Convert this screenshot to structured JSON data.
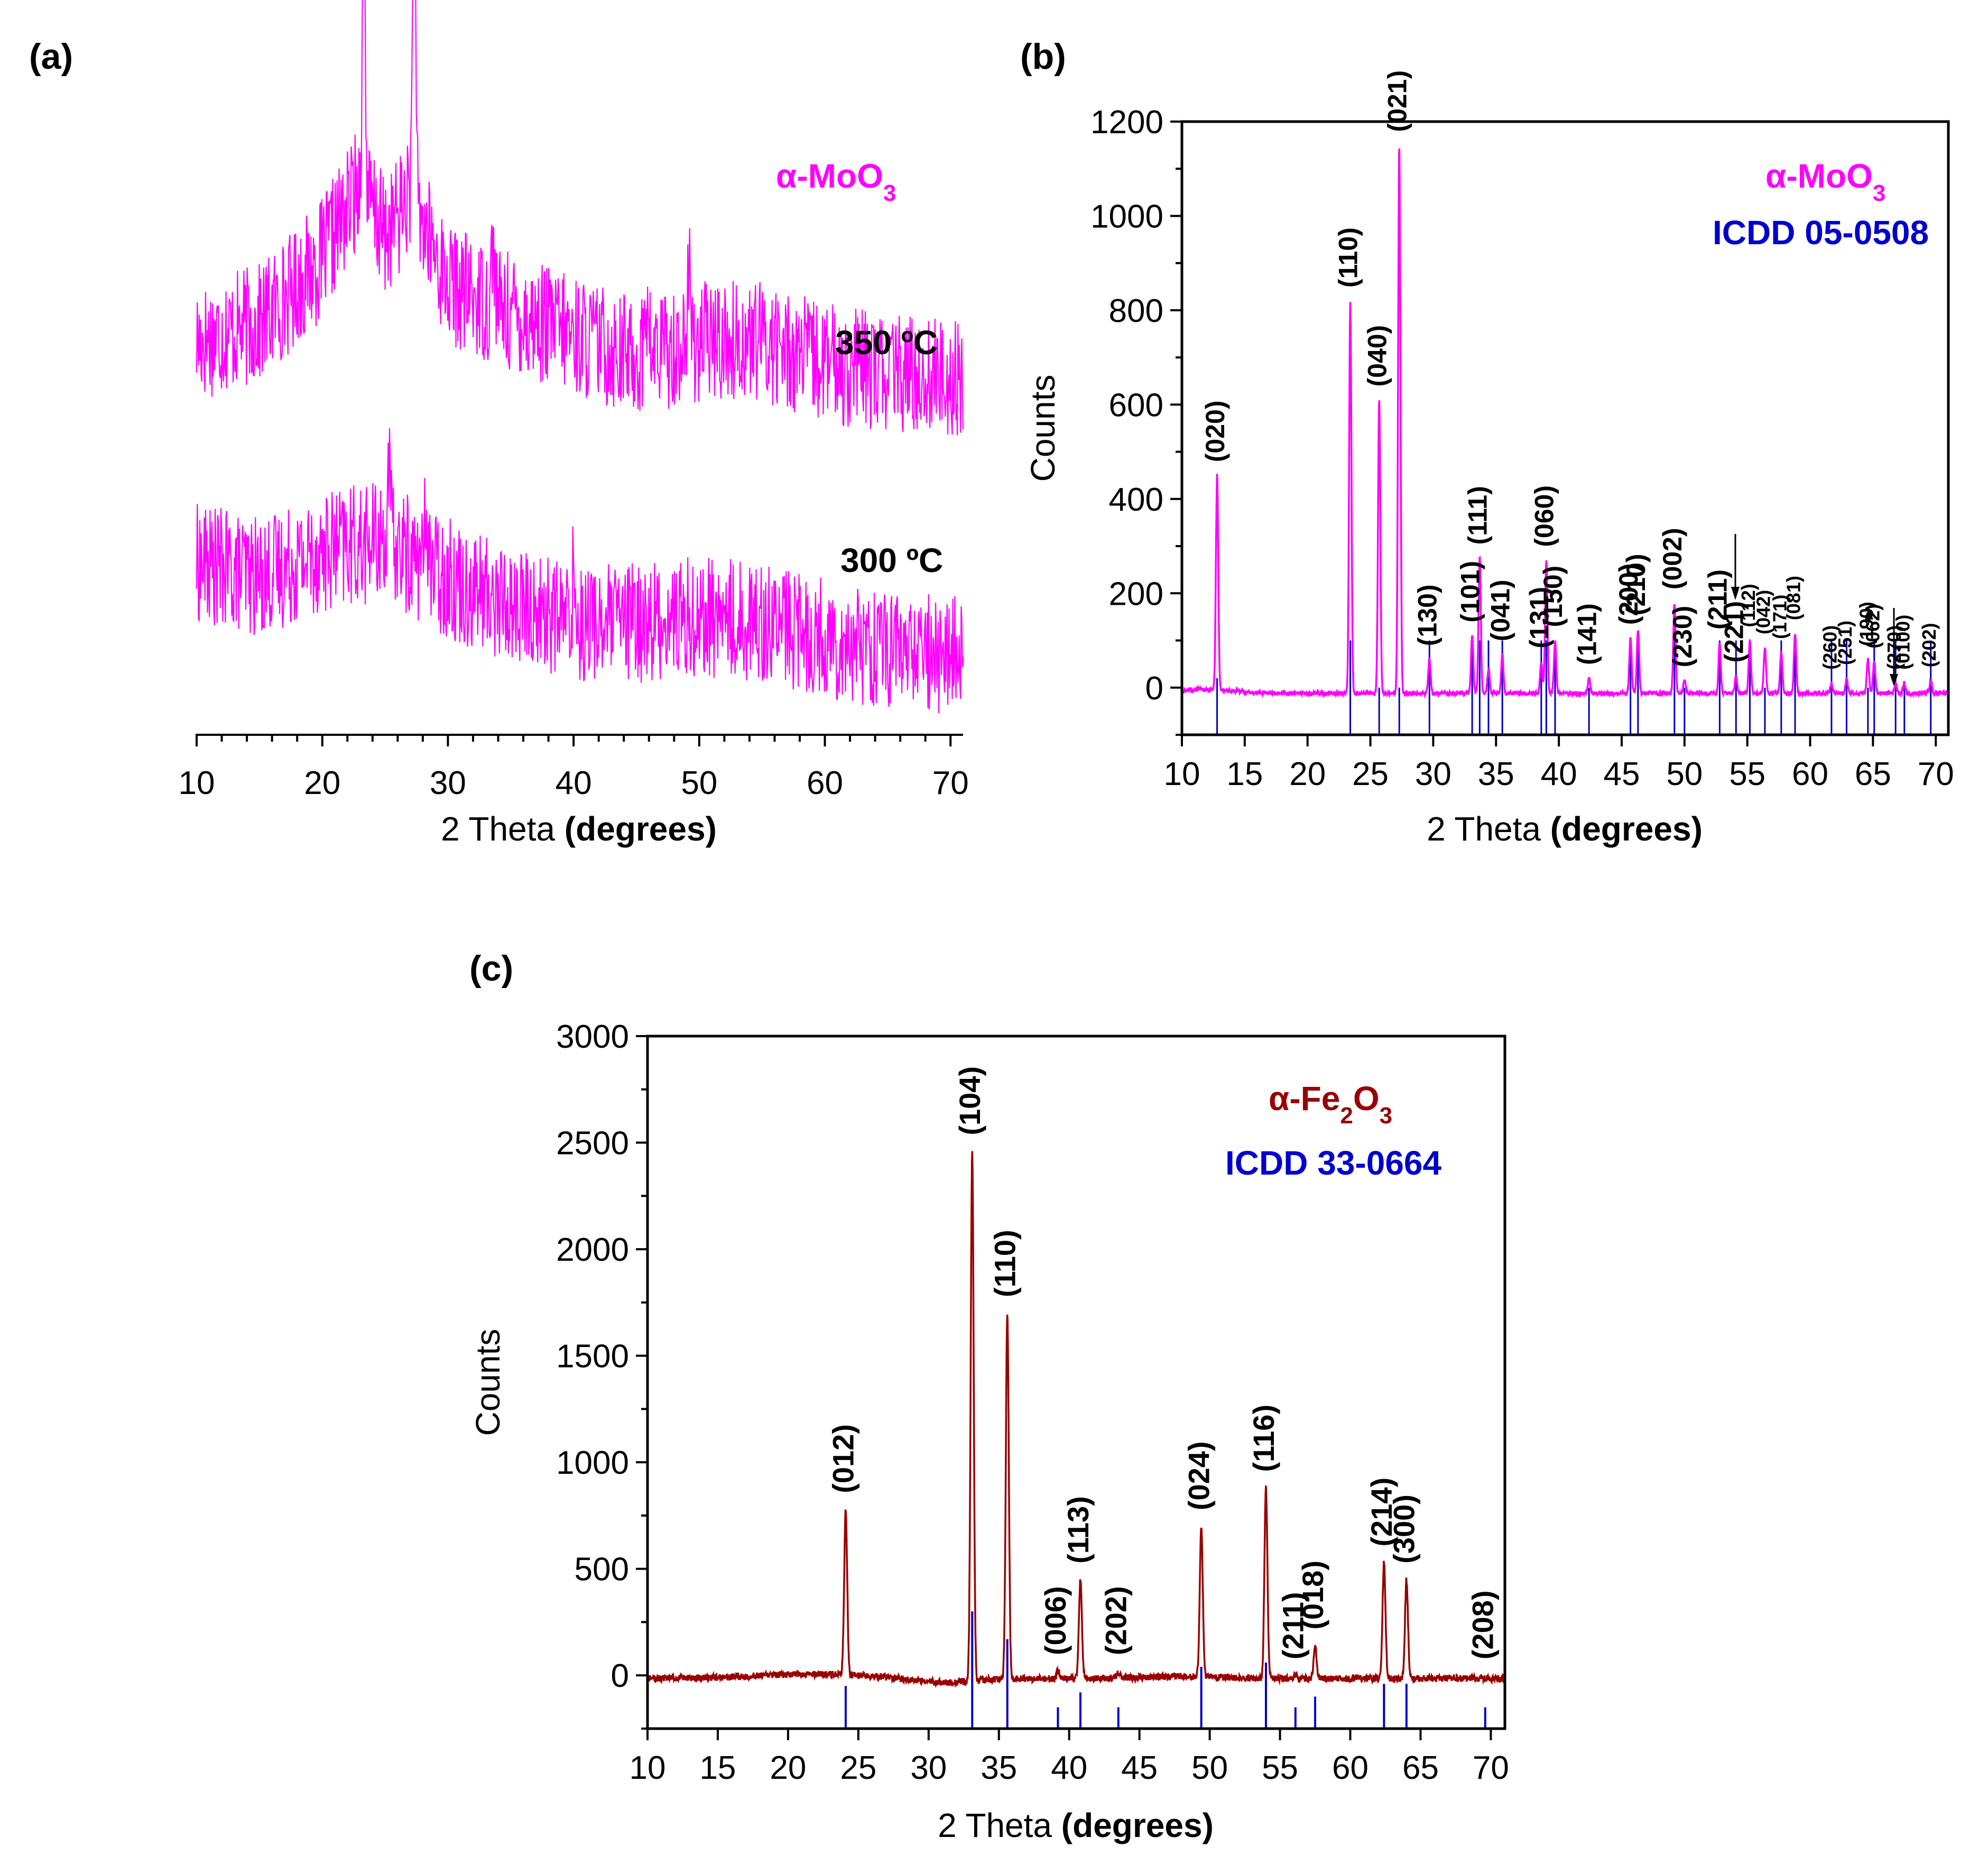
{
  "chart_data": [
    {
      "id": "a",
      "panel_label": "(a)",
      "type": "line",
      "title": "α-MoO3",
      "title_main": "α-MoO",
      "title_sub": "3",
      "color": "#ff00ff",
      "xlabel_plain": "2 Theta ",
      "xlabel_bold": "(degrees)",
      "ylabel": "",
      "xlim": [
        10,
        71
      ],
      "xticks": [
        "10",
        "20",
        "30",
        "40",
        "50",
        "60",
        "70"
      ],
      "series": [
        {
          "name": "350 ºC",
          "label": "350 ºC",
          "noise": 28,
          "baseline": [
            [
              10,
              62
            ],
            [
              15,
              70
            ],
            [
              20,
              100
            ],
            [
              23,
              135
            ],
            [
              25,
              110
            ],
            [
              27,
              130
            ],
            [
              30,
              88
            ],
            [
              35,
              75
            ],
            [
              40,
              65
            ],
            [
              45,
              55
            ],
            [
              50,
              62
            ],
            [
              55,
              62
            ],
            [
              60,
              52
            ],
            [
              65,
              47
            ],
            [
              71,
              45
            ]
          ],
          "spikes": [
            [
              23.3,
              112
            ],
            [
              27.3,
              120
            ],
            [
              33.6,
              30
            ],
            [
              49.2,
              30
            ],
            [
              45.8,
              25
            ]
          ]
        },
        {
          "name": "300 ºC",
          "label": "300 ºC",
          "noise": 28,
          "baseline": [
            [
              10,
              65
            ],
            [
              15,
              58
            ],
            [
              20,
              70
            ],
            [
              25,
              75
            ],
            [
              30,
              58
            ],
            [
              35,
              45
            ],
            [
              40,
              38
            ],
            [
              45,
              37
            ],
            [
              50,
              40
            ],
            [
              55,
              38
            ],
            [
              60,
              30
            ],
            [
              65,
              25
            ],
            [
              71,
              22
            ]
          ],
          "spikes": [
            [
              25.3,
              30
            ],
            [
              28.3,
              25
            ],
            [
              40,
              20
            ]
          ]
        }
      ]
    },
    {
      "id": "b",
      "panel_label": "(b)",
      "type": "line",
      "title": "α-MoO3",
      "title_main": "α-MoO",
      "title_sub": "3",
      "reference": "ICDD 05-0508",
      "color": "#ff00ff",
      "ref_color": "#0000cc",
      "xlabel_plain": "2 Theta ",
      "xlabel_bold": "(degrees)",
      "ylabel": "Counts",
      "xlim": [
        10,
        71
      ],
      "ylim": [
        -100,
        1200
      ],
      "xticks": [
        10,
        15,
        20,
        25,
        30,
        35,
        40,
        45,
        50,
        55,
        60,
        65,
        70
      ],
      "yticks": [
        0,
        200,
        400,
        600,
        800,
        1000,
        1200
      ],
      "peaks": [
        {
          "x": 12.8,
          "y": 450,
          "hkl": "(020)",
          "ref": 20
        },
        {
          "x": 23.4,
          "y": 820,
          "hkl": "(110)",
          "ref": 100
        },
        {
          "x": 25.7,
          "y": 610,
          "hkl": "(040)",
          "ref": 0
        },
        {
          "x": 27.3,
          "y": 1150,
          "hkl": "(021)",
          "ref": 0
        },
        {
          "x": 29.7,
          "y": 60,
          "hkl": "(130)",
          "ref": 100
        },
        {
          "x": 33.1,
          "y": 110,
          "hkl": "(101)",
          "ref": 100
        },
        {
          "x": 33.7,
          "y": 275,
          "hkl": "(111)",
          "ref": 100
        },
        {
          "x": 34.4,
          "y": 40,
          "hkl": "",
          "ref": 100
        },
        {
          "x": 35.5,
          "y": 70,
          "hkl": "(041)",
          "ref": 100
        },
        {
          "x": 38.6,
          "y": 55,
          "hkl": "(131)",
          "ref": 100
        },
        {
          "x": 39.0,
          "y": 270,
          "hkl": "(060)",
          "ref": 100
        },
        {
          "x": 39.7,
          "y": 100,
          "hkl": "(150)",
          "ref": 100
        },
        {
          "x": 42.4,
          "y": 20,
          "hkl": "(141)",
          "ref": 0
        },
        {
          "x": 45.7,
          "y": 105,
          "hkl": "(200)",
          "ref": 100
        },
        {
          "x": 46.3,
          "y": 125,
          "hkl": "(210)",
          "ref": 100
        },
        {
          "x": 49.2,
          "y": 180,
          "hkl": "(002)",
          "ref": 100
        },
        {
          "x": 50.0,
          "y": 15,
          "hkl": "(230)",
          "ref": 0
        },
        {
          "x": 52.8,
          "y": 95,
          "hkl": "(211)",
          "ref": 100
        },
        {
          "x": 54.1,
          "y": 25,
          "hkl": "(221)",
          "ref": 100
        },
        {
          "x": 55.2,
          "y": 100,
          "hkl": "(112)",
          "ref": 100
        },
        {
          "x": 56.4,
          "y": 85,
          "hkl": "(042)",
          "ref": 0
        },
        {
          "x": 57.7,
          "y": 75,
          "hkl": "(171)",
          "ref": 100
        },
        {
          "x": 58.8,
          "y": 115,
          "hkl": "(081)",
          "ref": 100
        },
        {
          "x": 61.7,
          "y": 10,
          "hkl": "(260)",
          "ref": 100
        },
        {
          "x": 62.9,
          "y": 20,
          "hkl": "(251)",
          "ref": 100
        },
        {
          "x": 64.6,
          "y": 60,
          "hkl": "(190)",
          "ref": 0
        },
        {
          "x": 65.1,
          "y": 55,
          "hkl": "(062)",
          "ref": 100
        },
        {
          "x": 66.8,
          "y": 10,
          "hkl": "(270)",
          "ref": 100
        },
        {
          "x": 67.5,
          "y": 10,
          "hkl": "(0100)",
          "ref": 0
        },
        {
          "x": 69.6,
          "y": 15,
          "hkl": "(202)",
          "ref": 100
        }
      ]
    },
    {
      "id": "c",
      "panel_label": "(c)",
      "type": "line",
      "title": "α-Fe2O3",
      "title_main": "α-Fe",
      "title_sub1": "2",
      "title_mid": "O",
      "title_sub2": "3",
      "reference": "ICDD 33-0664",
      "color": "#990000",
      "ref_color": "#0000cc",
      "xlabel_plain": "2 Theta ",
      "xlabel_bold": "(degrees)",
      "ylabel": "Counts",
      "xlim": [
        10,
        71
      ],
      "ylim": [
        -250,
        3000
      ],
      "xticks": [
        10,
        15,
        20,
        25,
        30,
        35,
        40,
        45,
        50,
        55,
        60,
        65,
        70
      ],
      "yticks": [
        0,
        500,
        1000,
        1500,
        2000,
        2500,
        3000
      ],
      "peaks": [
        {
          "x": 24.1,
          "y": 780,
          "hkl": "(012)",
          "ref": -50
        },
        {
          "x": 33.1,
          "y": 2460,
          "hkl": "(104)",
          "ref": 300
        },
        {
          "x": 35.6,
          "y": 1700,
          "hkl": "(110)",
          "ref": 170
        },
        {
          "x": 39.2,
          "y": 20,
          "hkl": "(006)",
          "ref": -150
        },
        {
          "x": 40.8,
          "y": 450,
          "hkl": "(113)",
          "ref": -80
        },
        {
          "x": 43.5,
          "y": 20,
          "hkl": "(202)",
          "ref": -150
        },
        {
          "x": 49.4,
          "y": 700,
          "hkl": "(024)",
          "ref": 40
        },
        {
          "x": 54.0,
          "y": 880,
          "hkl": "(116)",
          "ref": 60
        },
        {
          "x": 56.1,
          "y": 0,
          "hkl": "(211)",
          "ref": -150
        },
        {
          "x": 57.5,
          "y": 140,
          "hkl": "(018)",
          "ref": -100
        },
        {
          "x": 62.4,
          "y": 530,
          "hkl": "(214)",
          "ref": -40
        },
        {
          "x": 64.0,
          "y": 450,
          "hkl": "(300)",
          "ref": -40
        },
        {
          "x": 69.6,
          "y": -50,
          "hkl": "(208)",
          "ref": -150
        }
      ]
    }
  ]
}
